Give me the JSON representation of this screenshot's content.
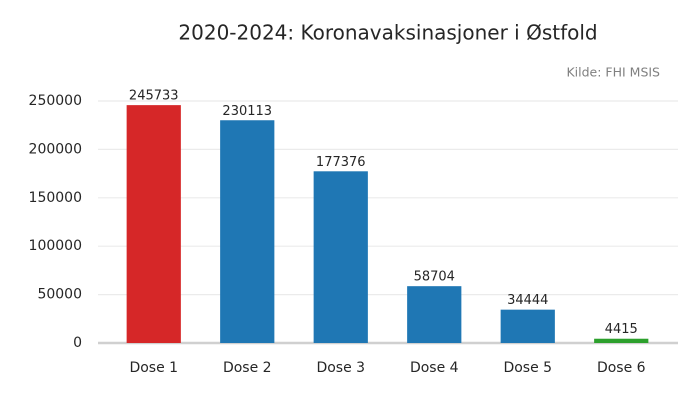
{
  "chart_data": {
    "type": "bar",
    "title": "2020-2024: Koronavaksinasjoner i Østfold",
    "annotation": "Kilde: FHI MSIS",
    "categories": [
      "Dose 1",
      "Dose 2",
      "Dose 3",
      "Dose 4",
      "Dose 5",
      "Dose 6"
    ],
    "values": [
      245733,
      230113,
      177376,
      58704,
      34444,
      4415
    ],
    "colors": [
      "#d62728",
      "#1f77b4",
      "#1f77b4",
      "#1f77b4",
      "#1f77b4",
      "#2ca02c"
    ],
    "ylim": [
      0,
      250000
    ],
    "yticks": [
      0,
      50000,
      100000,
      150000,
      200000,
      250000
    ],
    "grid": true
  }
}
